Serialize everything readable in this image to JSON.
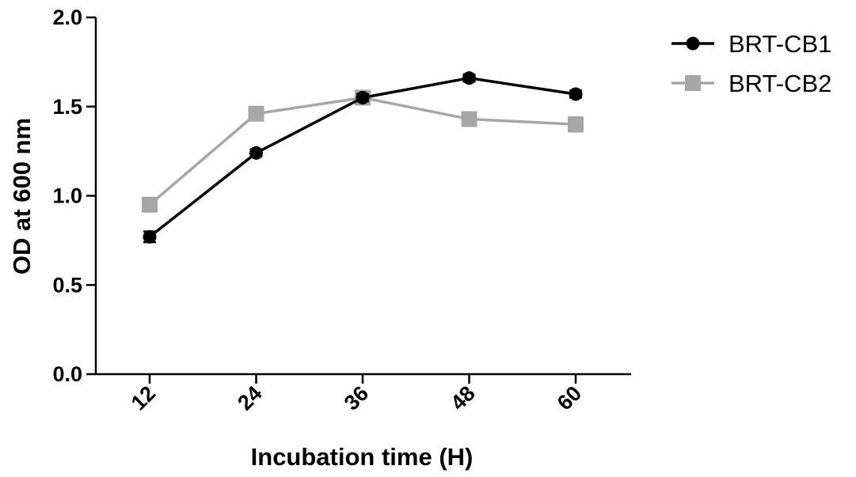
{
  "chart_data": {
    "type": "line",
    "title": "",
    "xlabel": "Incubation time (H)",
    "ylabel": "OD at 600 nm",
    "categories": [
      "12",
      "24",
      "36",
      "48",
      "60"
    ],
    "ylim": [
      0,
      2.0
    ],
    "yticks": [
      "0.0",
      "0.5",
      "1.0",
      "1.5",
      "2.0"
    ],
    "grid": false,
    "legend_position": "top-right",
    "series": [
      {
        "name": "BRT-CB1",
        "values": [
          0.77,
          1.24,
          1.55,
          1.66,
          1.57
        ],
        "errors": [
          0.03,
          0.02,
          0.02,
          0.02,
          0.02
        ],
        "color": "#000000",
        "marker": "circle"
      },
      {
        "name": "BRT-CB2",
        "values": [
          0.95,
          1.46,
          1.55,
          1.43,
          1.4
        ],
        "errors": [
          0.03,
          0.02,
          0.02,
          0.02,
          0.04
        ],
        "color": "#a6a6a6",
        "marker": "square"
      }
    ]
  }
}
